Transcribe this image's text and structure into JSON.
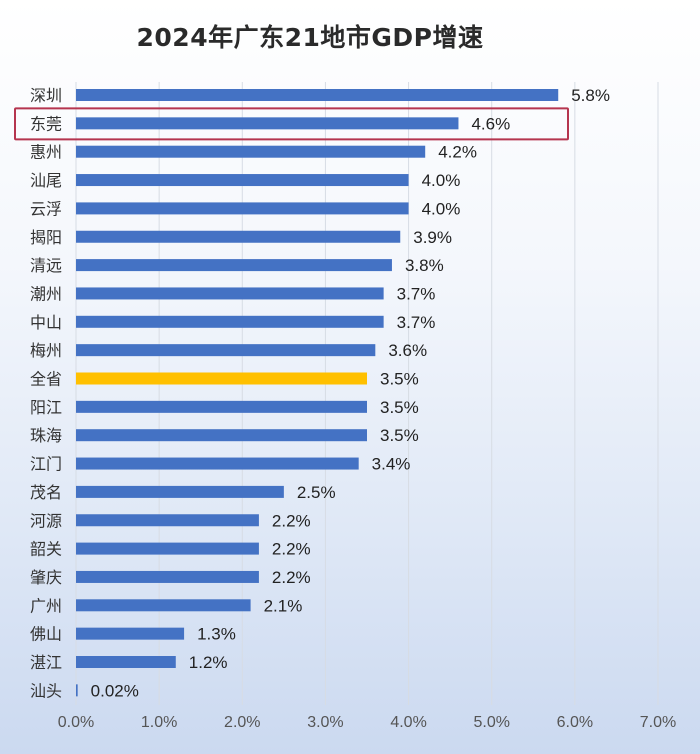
{
  "chart_data": {
    "type": "bar",
    "orientation": "horizontal",
    "title": "2024年广东21地市GDP增速",
    "categories": [
      "深圳",
      "东莞",
      "惠州",
      "汕尾",
      "云浮",
      "揭阳",
      "清远",
      "潮州",
      "中山",
      "梅州",
      "全省",
      "阳江",
      "珠海",
      "江门",
      "茂名",
      "河源",
      "韶关",
      "肇庆",
      "广州",
      "佛山",
      "湛江",
      "汕头"
    ],
    "values": [
      5.8,
      4.6,
      4.2,
      4.0,
      4.0,
      3.9,
      3.8,
      3.7,
      3.7,
      3.6,
      3.5,
      3.5,
      3.5,
      3.4,
      2.5,
      2.2,
      2.2,
      2.2,
      2.1,
      1.3,
      1.2,
      0.02
    ],
    "value_labels": [
      "5.8%",
      "4.6%",
      "4.2%",
      "4.0%",
      "4.0%",
      "3.9%",
      "3.8%",
      "3.7%",
      "3.7%",
      "3.6%",
      "3.5%",
      "3.5%",
      "3.5%",
      "3.4%",
      "2.5%",
      "2.2%",
      "2.2%",
      "2.2%",
      "2.1%",
      "1.3%",
      "1.2%",
      "0.02%"
    ],
    "xlim": [
      0,
      7.0
    ],
    "x_ticks": [
      "0.0%",
      "1.0%",
      "2.0%",
      "3.0%",
      "4.0%",
      "5.0%",
      "6.0%",
      "7.0%"
    ],
    "grid": true,
    "legend": "none",
    "bar_color": "#4472c4",
    "highlight_bar": {
      "category": "全省",
      "color": "#ffc000"
    },
    "outlined_category": {
      "category": "东莞",
      "color": "#b5354f"
    }
  }
}
